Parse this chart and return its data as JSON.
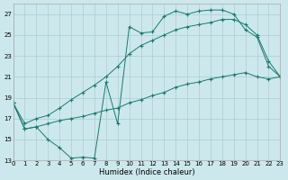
{
  "xlabel": "Humidex (Indice chaleur)",
  "xlim": [
    0,
    23
  ],
  "ylim": [
    13,
    28
  ],
  "yticks": [
    13,
    15,
    17,
    19,
    21,
    23,
    25,
    27
  ],
  "xticks": [
    0,
    1,
    2,
    3,
    4,
    5,
    6,
    7,
    8,
    9,
    10,
    11,
    12,
    13,
    14,
    15,
    16,
    17,
    18,
    19,
    20,
    21,
    22,
    23
  ],
  "bg_color": "#cce8ec",
  "grid_color": "#aacdd4",
  "line_color": "#1a7a6e",
  "line1_x": [
    0,
    1,
    2,
    3,
    4,
    5,
    6,
    7,
    8,
    9,
    10,
    11,
    12,
    13,
    14,
    15,
    16,
    17,
    18,
    19,
    20,
    21,
    22,
    23
  ],
  "line1_y": [
    18.5,
    16.0,
    16.2,
    15.0,
    14.2,
    13.2,
    13.3,
    13.2,
    20.5,
    16.5,
    25.8,
    25.2,
    25.3,
    26.8,
    27.3,
    27.0,
    27.3,
    27.4,
    27.4,
    27.0,
    25.5,
    24.8,
    22.0,
    21.0
  ],
  "line2_x": [
    0,
    1,
    2,
    3,
    4,
    5,
    6,
    7,
    8,
    9,
    10,
    11,
    12,
    13,
    14,
    15,
    16,
    17,
    18,
    19,
    20,
    21,
    22,
    23
  ],
  "line2_y": [
    18.5,
    16.5,
    17.0,
    17.3,
    18.0,
    18.8,
    19.5,
    20.2,
    21.0,
    22.0,
    23.2,
    24.0,
    24.5,
    25.0,
    25.5,
    25.8,
    26.0,
    26.2,
    26.5,
    26.5,
    26.0,
    25.0,
    22.5,
    21.0
  ],
  "line3_x": [
    0,
    1,
    2,
    3,
    4,
    5,
    6,
    7,
    8,
    9,
    10,
    11,
    12,
    13,
    14,
    15,
    16,
    17,
    18,
    19,
    20,
    21,
    22,
    23
  ],
  "line3_y": [
    18.5,
    16.0,
    16.2,
    16.5,
    16.8,
    17.0,
    17.2,
    17.5,
    17.8,
    18.0,
    18.5,
    18.8,
    19.2,
    19.5,
    20.0,
    20.3,
    20.5,
    20.8,
    21.0,
    21.2,
    21.4,
    21.0,
    20.8,
    21.0
  ]
}
